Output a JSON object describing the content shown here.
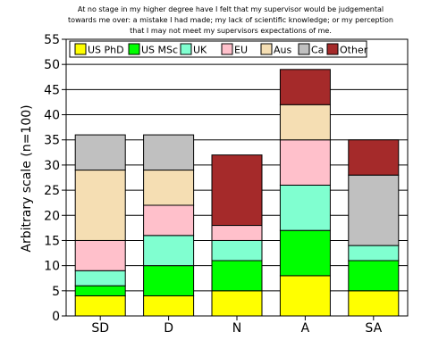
{
  "chart_data": {
    "type": "bar",
    "stacked": true,
    "title": "At no stage in my higher degree have I felt that my supervisor would be judgemental towards me over: a mistake I had made; my lack of scientific knowledge; or my perception that I may not meet my supervisors expectations of me.",
    "title_lines": [
      "At no stage in my higher degree have I felt that my supervisor would be judgemental",
      "towards me over: a mistake I had made; my lack of scientific knowledge; or my perception",
      "that I may not meet my supervisors expectations of me."
    ],
    "xlabel": "",
    "ylabel": "Arbitrary scale (n=100)",
    "ylim": [
      0,
      55
    ],
    "yticks": [
      0,
      5,
      10,
      15,
      20,
      25,
      30,
      35,
      40,
      45,
      50,
      55
    ],
    "grid": true,
    "legend_position": "top",
    "categories": [
      "SD",
      "D",
      "N",
      "A",
      "SA"
    ],
    "series": [
      {
        "name": "US PhD",
        "color": "#ffff00",
        "values": [
          4,
          4,
          5,
          8,
          5
        ]
      },
      {
        "name": "US MSc",
        "color": "#00ff00",
        "values": [
          2,
          6,
          6,
          9,
          6
        ]
      },
      {
        "name": "UK",
        "color": "#80ffd0",
        "values": [
          3,
          6,
          4,
          9,
          3
        ]
      },
      {
        "name": "EU",
        "color": "#ffc0cb",
        "values": [
          6,
          6,
          3,
          9,
          0
        ]
      },
      {
        "name": "Aus",
        "color": "#f5deb3",
        "values": [
          14,
          7,
          0,
          7,
          0
        ]
      },
      {
        "name": "Ca",
        "color": "#c0c0c0",
        "values": [
          7,
          7,
          0,
          0,
          14
        ]
      },
      {
        "name": "Other",
        "color": "#a52a2a",
        "values": [
          0,
          0,
          14,
          7,
          7
        ]
      }
    ]
  }
}
